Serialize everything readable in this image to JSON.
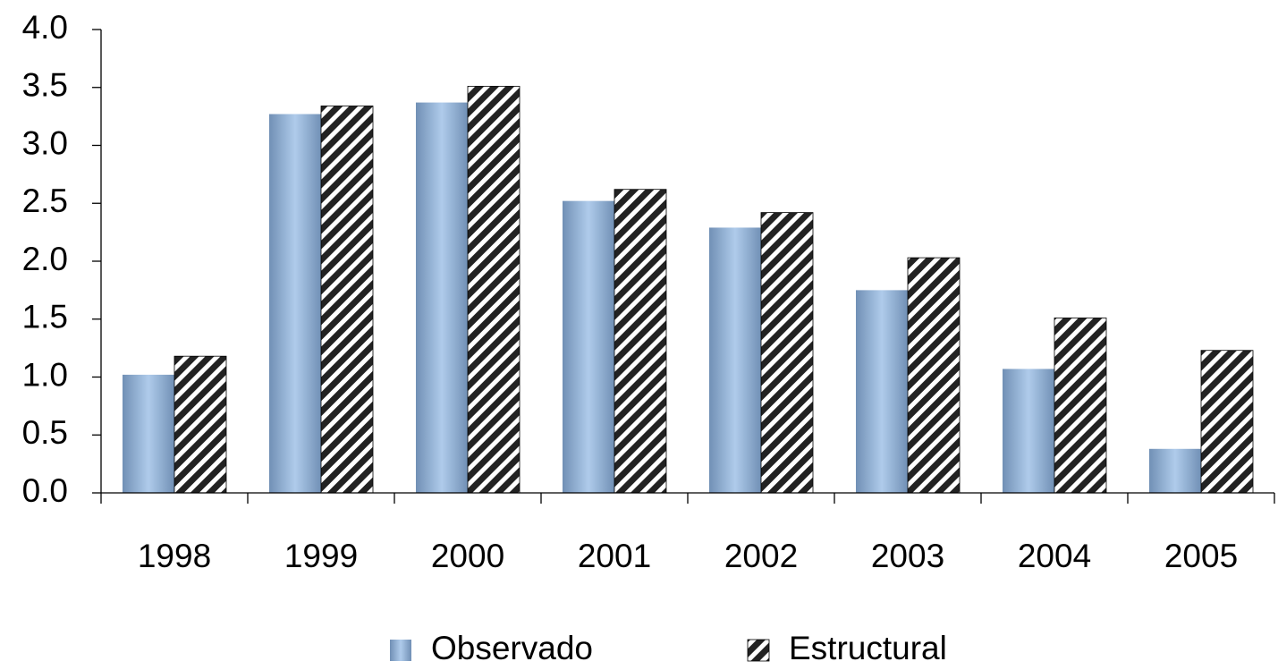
{
  "chart_data": {
    "type": "bar",
    "categories": [
      "1998",
      "1999",
      "2000",
      "2001",
      "2002",
      "2003",
      "2004",
      "2005"
    ],
    "series": [
      {
        "name": "Observado",
        "color": "#8db4e2",
        "hatch": false,
        "values": [
          1.02,
          3.27,
          3.37,
          2.52,
          2.29,
          1.75,
          1.07,
          0.38
        ]
      },
      {
        "name": "Estructural",
        "color": "#222222",
        "hatch": true,
        "values": [
          1.18,
          3.34,
          3.51,
          2.62,
          2.42,
          2.03,
          1.51,
          1.23
        ]
      }
    ],
    "ylim": [
      0,
      4
    ],
    "yticks": [
      {
        "value": 0,
        "label": "0.0"
      },
      0.5,
      {
        "value": 1,
        "label": "1.0"
      },
      1.5,
      {
        "value": 2,
        "label": "2.0"
      },
      2.5,
      {
        "value": 3,
        "label": "3.0"
      },
      3.5,
      {
        "value": 4,
        "label": "4.0"
      }
    ],
    "grid": false,
    "legend": "bottom"
  }
}
